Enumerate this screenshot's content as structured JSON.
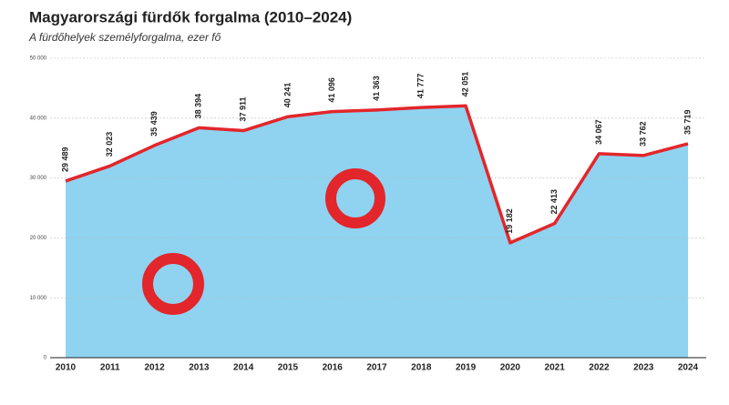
{
  "chart_data": {
    "type": "line",
    "title": "Magyarországi fürdők forgalma (2010–2024)",
    "subtitle": "A fürdőhelyek személyforgalma, ezer fő",
    "categories": [
      "2010",
      "2011",
      "2012",
      "2013",
      "2014",
      "2015",
      "2016",
      "2017",
      "2018",
      "2019",
      "2020",
      "2021",
      "2022",
      "2023",
      "2024"
    ],
    "series": [
      {
        "color": "#e3262b",
        "area_color": "#8fd3f1",
        "values": [
          29489,
          32023,
          35439,
          38394,
          37911,
          40241,
          41096,
          41363,
          41777,
          42051,
          19182,
          22413,
          34067,
          33762,
          35719
        ],
        "value_labels": [
          "29 489",
          "32 023",
          "35 439",
          "38 394",
          "37 911",
          "40 241",
          "41 096",
          "41 363",
          "41 777",
          "42 051",
          "19 182",
          "22 413",
          "34 067",
          "33 762",
          "35 719"
        ]
      }
    ],
    "ylim": [
      0,
      50000
    ],
    "yticks": [
      0,
      {
        "value": 10000,
        "label": "10 000"
      },
      {
        "value": 20000,
        "label": "20 000"
      },
      {
        "value": 30000,
        "label": "30 000"
      },
      {
        "value": 40000,
        "label": "40 000"
      },
      {
        "value": 50000,
        "label": "50 000"
      }
    ],
    "grid": true
  }
}
